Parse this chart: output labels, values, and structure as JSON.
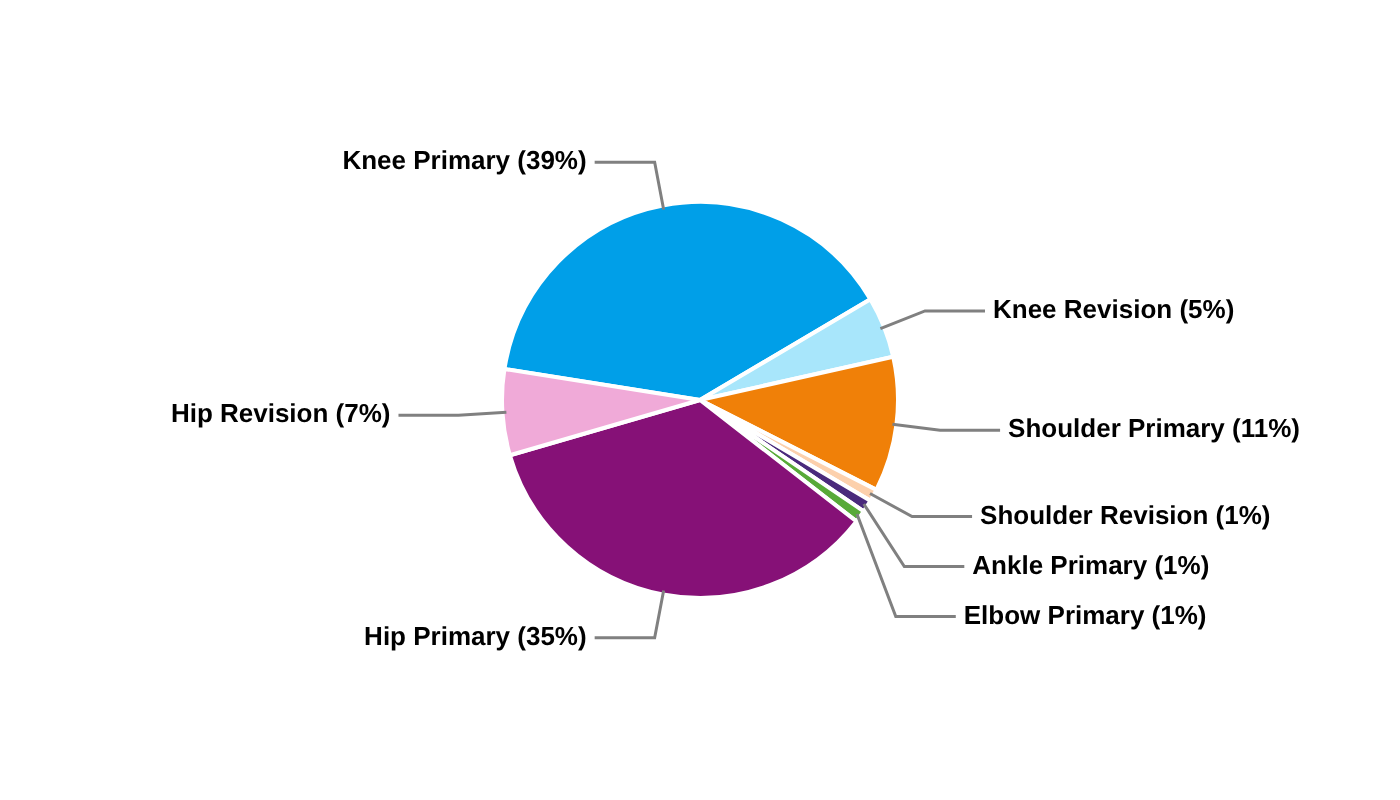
{
  "chart_data": {
    "type": "pie",
    "categories": [
      "Knee Primary (39%)",
      "Knee Revision (5%)",
      "Shoulder Primary (11%)",
      "Shoulder Revision (1%)",
      "Ankle Primary (1%)",
      "Elbow Primary (1%)",
      "Hip Primary (35%)",
      "Hip Revision (7%)"
    ],
    "values": [
      39,
      5,
      11,
      1,
      1,
      1,
      35,
      7
    ],
    "colors": [
      "#009fe8",
      "#a8e6fb",
      "#f08008",
      "#fcd0ac",
      "#4a2a7c",
      "#58aa38",
      "#861177",
      "#f0aad8"
    ],
    "legend": false
  }
}
